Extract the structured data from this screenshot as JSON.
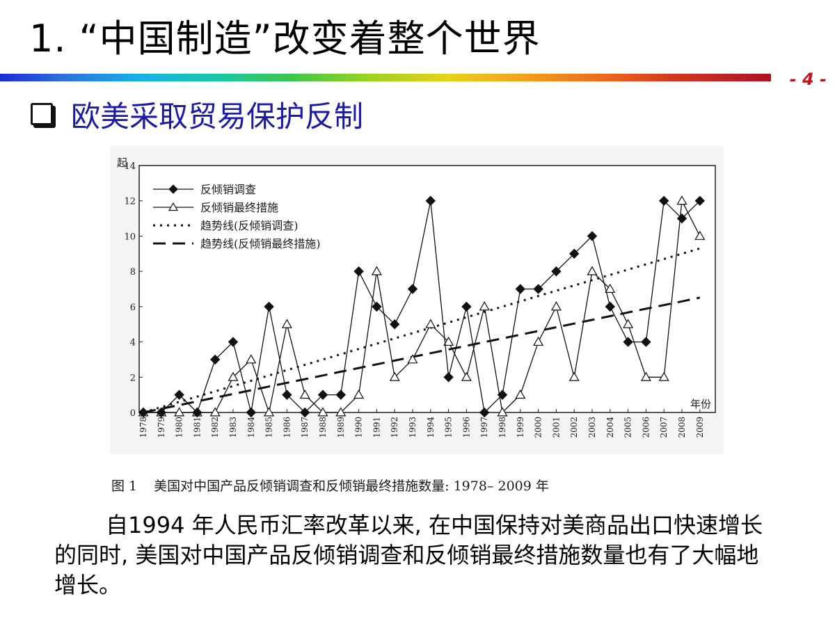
{
  "slide": {
    "title": "1. “中国制造”改变着整个世界",
    "page_number": "- 4 -",
    "subtitle": "欧美采取贸易保护反制",
    "body": "自1994 年人民币汇率改革以来, 在中国保持对美商品出口快速增长的同时, 美国对中国产品反倾销调查和反倾销最终措施数量也有了大幅地增长。"
  },
  "caption": {
    "number": "图 1",
    "text": "美国对中国产品反倾销调查和反倾销最终措施数量: 1978– 2009 年"
  },
  "chart_data": {
    "type": "line",
    "title": "",
    "ylabel": "起",
    "xlabel": "年份",
    "ylim": [
      0,
      14
    ],
    "yticks": [
      0,
      2,
      4,
      6,
      8,
      10,
      12,
      14
    ],
    "grid": false,
    "legend_position": "top-left",
    "categories": [
      "1978",
      "1979",
      "1980",
      "1981",
      "1982",
      "1983",
      "1984",
      "1985",
      "1986",
      "1987",
      "1988",
      "1989",
      "1990",
      "1991",
      "1992",
      "1993",
      "1994",
      "1995",
      "1996",
      "1997",
      "1998",
      "1999",
      "2000",
      "2001",
      "2002",
      "2003",
      "2004",
      "2005",
      "2006",
      "2007",
      "2008",
      "2009"
    ],
    "series": [
      {
        "name": "反倾销调查",
        "marker": "filled-diamond",
        "style": "solid",
        "values": [
          0,
          0,
          1,
          0,
          3,
          4,
          0,
          6,
          1,
          0,
          1,
          1,
          8,
          6,
          5,
          7,
          12,
          2,
          6,
          0,
          1,
          7,
          7,
          8,
          9,
          10,
          6,
          4,
          4,
          12,
          11,
          12
        ]
      },
      {
        "name": "反倾销最终措施",
        "marker": "open-triangle",
        "style": "solid",
        "values": [
          0,
          0,
          0,
          0,
          0,
          2,
          3,
          0,
          5,
          1,
          0,
          0,
          1,
          8,
          2,
          3,
          5,
          4,
          2,
          6,
          0,
          1,
          4,
          6,
          2,
          8,
          7,
          5,
          2,
          2,
          12,
          10
        ]
      },
      {
        "name": "趋势线(反倾销调查)",
        "style": "dotted",
        "values": [
          0,
          0.3,
          0.6,
          0.9,
          1.2,
          1.5,
          1.8,
          2.1,
          2.4,
          2.7,
          3.0,
          3.3,
          3.6,
          3.9,
          4.2,
          4.5,
          4.8,
          5.1,
          5.4,
          5.7,
          6.0,
          6.3,
          6.6,
          6.9,
          7.2,
          7.5,
          7.8,
          8.1,
          8.4,
          8.7,
          9.0,
          9.3
        ]
      },
      {
        "name": "趋势线(反倾销最终措施)",
        "style": "dashed",
        "values": [
          0,
          0.21,
          0.42,
          0.63,
          0.84,
          1.05,
          1.26,
          1.47,
          1.68,
          1.89,
          2.1,
          2.31,
          2.52,
          2.73,
          2.94,
          3.15,
          3.36,
          3.57,
          3.78,
          3.99,
          4.2,
          4.41,
          4.62,
          4.83,
          5.04,
          5.25,
          5.46,
          5.67,
          5.88,
          6.09,
          6.3,
          6.51
        ]
      }
    ]
  }
}
